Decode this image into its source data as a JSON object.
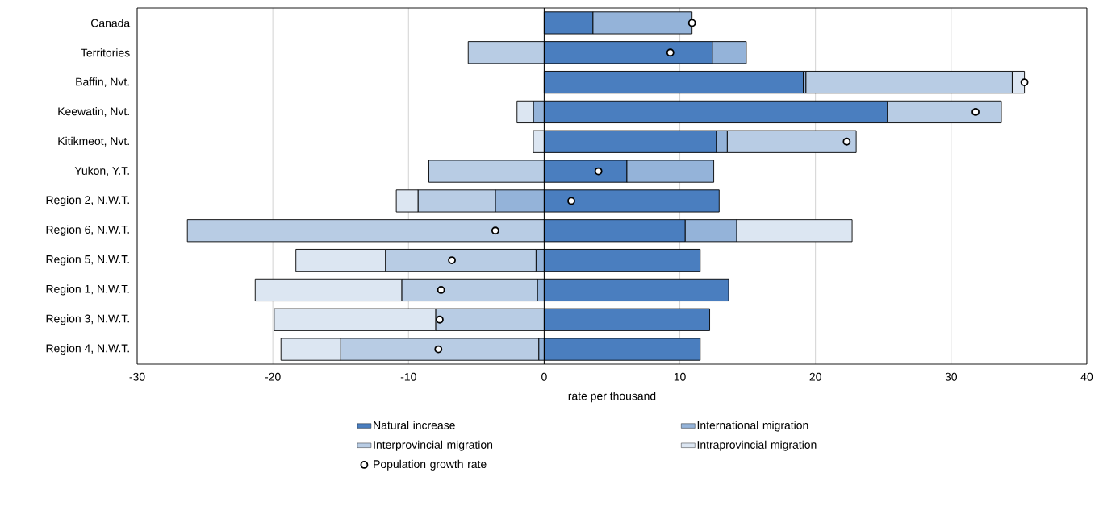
{
  "chart_data": {
    "type": "bar",
    "orientation": "horizontal",
    "stacked": true,
    "xlabel": "rate per thousand",
    "categories": [
      "Canada",
      "Territories",
      "Baffin, Nvt.",
      "Keewatin, Nvt.",
      "Kitikmeot, Nvt.",
      "Yukon, Y.T.",
      "Region 2, N.W.T.",
      "Region 6, N.W.T.",
      "Region 5, N.W.T.",
      "Region 1, N.W.T.",
      "Region 3, N.W.T.",
      "Region 4, N.W.T."
    ],
    "xlim": [
      -30,
      40
    ],
    "xticks": [
      -30,
      -20,
      -10,
      0,
      10,
      20,
      30,
      40
    ],
    "grid": "x",
    "legend": "bottom",
    "series": [
      {
        "name": "Natural increase",
        "color": "#4a7ebf",
        "values": [
          3.6,
          12.4,
          19.1,
          25.3,
          12.7,
          6.1,
          12.9,
          10.4,
          11.5,
          13.6,
          12.2,
          11.5
        ]
      },
      {
        "name": "International migration",
        "color": "#94b3d9",
        "values": [
          7.3,
          2.5,
          0.2,
          -0.8,
          0.8,
          6.4,
          -3.6,
          3.8,
          -0.6,
          -0.5,
          null,
          -0.4
        ]
      },
      {
        "name": "Interprovincial migration",
        "color": "#b8cce4",
        "values": [
          null,
          -5.6,
          15.2,
          8.4,
          9.5,
          -8.5,
          -5.7,
          -26.3,
          -11.1,
          -10.0,
          -8.0,
          -14.6
        ]
      },
      {
        "name": "Intraprovincial migration",
        "color": "#dce6f2",
        "values": [
          null,
          null,
          0.9,
          -1.2,
          -0.8,
          null,
          -1.6,
          8.5,
          -6.6,
          -10.8,
          -11.9,
          -4.4
        ]
      },
      {
        "name": "Population growth rate",
        "type": "scatter",
        "color": "#ffffff",
        "values": [
          10.9,
          9.3,
          35.4,
          31.8,
          22.3,
          4.0,
          2.0,
          -3.6,
          -6.8,
          -7.6,
          -7.7,
          -7.8
        ]
      }
    ]
  }
}
